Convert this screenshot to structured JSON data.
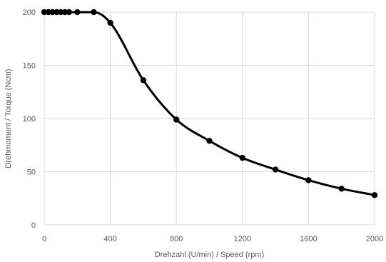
{
  "chart_data": {
    "type": "scatter",
    "xlabel": "Drehzahl (U/min) / Speed (rpm)",
    "ylabel": "Drehmoment / Torque (Ncm)",
    "xlim": [
      0,
      2000
    ],
    "ylim": [
      0,
      200
    ],
    "xticks": [
      "0",
      "400",
      "800",
      "1200",
      "1600",
      "2000"
    ],
    "yticks": [
      "0",
      "50",
      "100",
      "150",
      "200"
    ],
    "grid": true,
    "smooth_line": true,
    "series_color": "#000000",
    "series": [
      {
        "x": [
          0,
          25,
          50,
          75,
          100,
          125,
          150,
          200,
          300,
          400,
          600,
          800,
          1000,
          1200,
          1400,
          1600,
          1800,
          2000
        ],
        "y": [
          200,
          200,
          200,
          200,
          200,
          200,
          200,
          200,
          200,
          190,
          136,
          99,
          79,
          63,
          52,
          42,
          34,
          28
        ]
      }
    ]
  }
}
